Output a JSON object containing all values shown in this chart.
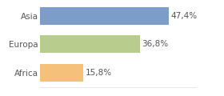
{
  "categories": [
    "Africa",
    "Europa",
    "Asia"
  ],
  "values": [
    15.8,
    36.8,
    47.4
  ],
  "labels": [
    "15,8%",
    "36,8%",
    "47,4%"
  ],
  "bar_colors": [
    "#f5c07a",
    "#b8cc8e",
    "#7b9dc7"
  ],
  "background_color": "#ffffff",
  "xlim": [
    0,
    58
  ],
  "bar_height": 0.62,
  "label_fontsize": 7.5,
  "tick_fontsize": 7.5
}
